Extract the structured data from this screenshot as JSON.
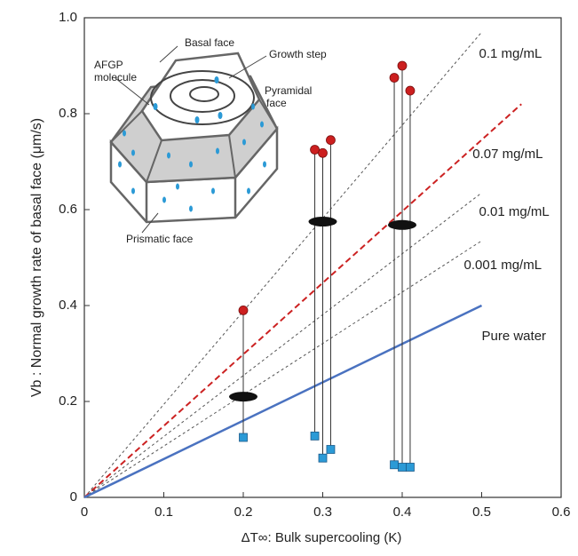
{
  "chart_data": {
    "type": "scatter",
    "x_label": "ΔT∞: Bulk supercooling (K)",
    "y_label": "Vb : Normal growth rate of basal face (μm/s)",
    "xlim": [
      0,
      0.6
    ],
    "ylim": [
      0,
      1.0
    ],
    "xticks": [
      0,
      0.1,
      0.2,
      0.3,
      0.4,
      0.5,
      0.6
    ],
    "yticks": [
      0,
      0.2,
      0.4,
      0.6,
      0.8,
      {
        "value": 1,
        "label": "1.0"
      }
    ],
    "lines": [
      {
        "name": "0.1 mg/mL",
        "color": "#555555",
        "style": "dotted",
        "x": [
          0,
          0.5
        ],
        "values": [
          0,
          0.97
        ]
      },
      {
        "name": "0.07 mg/mL",
        "color": "#cc2222",
        "style": "dashed",
        "x": [
          0,
          0.55
        ],
        "values": [
          0,
          0.82
        ]
      },
      {
        "name": "0.01 mg/mL",
        "color": "#555555",
        "style": "dotted",
        "x": [
          0,
          0.5
        ],
        "values": [
          0,
          0.635
        ]
      },
      {
        "name": "0.001 mg/mL",
        "color": "#555555",
        "style": "dotted",
        "x": [
          0,
          0.5
        ],
        "values": [
          0,
          0.535
        ]
      },
      {
        "name": "Pure water",
        "color": "#4a72c0",
        "style": "solid",
        "x": [
          0,
          0.5
        ],
        "values": [
          0,
          0.4
        ]
      }
    ],
    "max_points": {
      "color": "#cc1f1f",
      "x": [
        0.2,
        0.29,
        0.3,
        0.31,
        0.39,
        0.4,
        0.41
      ],
      "values": [
        0.39,
        0.725,
        0.718,
        0.745,
        0.875,
        0.9,
        0.848
      ]
    },
    "min_points": {
      "color": "#2b9ad6",
      "x": [
        0.2,
        0.29,
        0.3,
        0.31,
        0.39,
        0.4,
        0.41
      ],
      "values": [
        0.125,
        0.128,
        0.082,
        0.1,
        0.068,
        0.063,
        0.063
      ]
    },
    "means": {
      "color": "#111111",
      "x": [
        0.2,
        0.3,
        0.4
      ],
      "values": [
        0.21,
        0.575,
        0.568
      ]
    },
    "inset": {
      "basal": "Basal face",
      "growth_step": "Growth step",
      "afgp": [
        "AFGP",
        "molecule"
      ],
      "pyramidal": [
        "Pyramidal",
        "face"
      ],
      "prismatic": "Prismatic face"
    }
  }
}
